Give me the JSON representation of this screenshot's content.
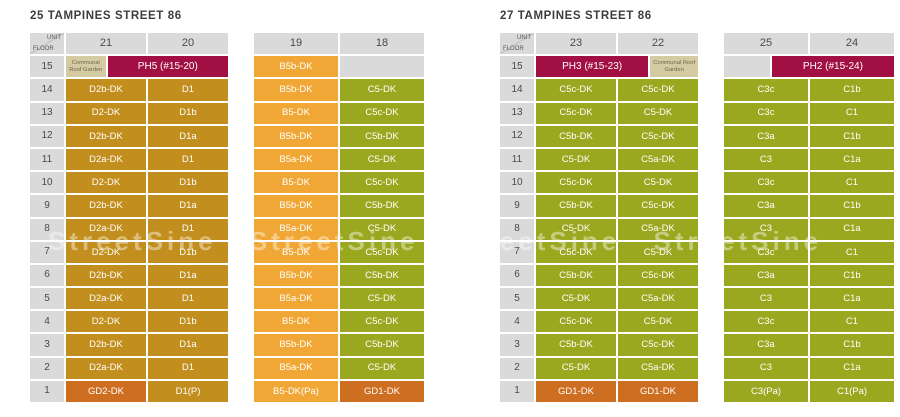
{
  "watermark_text": "StreetSine StreetSine StreetSine StreetSine",
  "palette": {
    "gold": "#C28E1E",
    "orange": "#F0A735",
    "green": "#99A81F",
    "crimson": "#A21043",
    "gd_orange": "#CE6E20",
    "gray": "#DADADA",
    "garden_beige": "#D5CBA2"
  },
  "chart_data": [
    {
      "type": "table",
      "title": "25 TAMPINES STREET 86",
      "corner": {
        "top": "UNIT",
        "bottom": "FLOOR"
      },
      "floors": [
        "15",
        "14",
        "13",
        "12",
        "11",
        "10",
        "9",
        "8",
        "7",
        "6",
        "5",
        "4",
        "3",
        "2",
        "1"
      ],
      "tables": [
        {
          "headers": [
            "21",
            "20"
          ],
          "floor_column": true,
          "floor15": {
            "mode": "garden-left",
            "garden": "Communal Roof Garden",
            "ph": "PH5 (#15-20)",
            "garden_pct": 22
          },
          "rows": [
            [
              [
                "D2b-DK",
                "gold"
              ],
              [
                "D1",
                "gold"
              ]
            ],
            [
              [
                "D2-DK",
                "gold"
              ],
              [
                "D1b",
                "gold"
              ]
            ],
            [
              [
                "D2b-DK",
                "gold"
              ],
              [
                "D1a",
                "gold"
              ]
            ],
            [
              [
                "D2a-DK",
                "gold"
              ],
              [
                "D1",
                "gold"
              ]
            ],
            [
              [
                "D2-DK",
                "gold"
              ],
              [
                "D1b",
                "gold"
              ]
            ],
            [
              [
                "D2b-DK",
                "gold"
              ],
              [
                "D1a",
                "gold"
              ]
            ],
            [
              [
                "D2a-DK",
                "gold"
              ],
              [
                "D1",
                "gold"
              ]
            ],
            [
              [
                "D2-DK",
                "gold"
              ],
              [
                "D1b",
                "gold"
              ]
            ],
            [
              [
                "D2b-DK",
                "gold"
              ],
              [
                "D1a",
                "gold"
              ]
            ],
            [
              [
                "D2a-DK",
                "gold"
              ],
              [
                "D1",
                "gold"
              ]
            ],
            [
              [
                "D2-DK",
                "gold"
              ],
              [
                "D1b",
                "gold"
              ]
            ],
            [
              [
                "D2b-DK",
                "gold"
              ],
              [
                "D1a",
                "gold"
              ]
            ],
            [
              [
                "D2a-DK",
                "gold"
              ],
              [
                "D1",
                "gold"
              ]
            ],
            [
              [
                "GD2-DK",
                "gd_orange"
              ],
              [
                "D1(P)",
                "gold"
              ]
            ]
          ]
        },
        {
          "headers": [
            "19",
            "18"
          ],
          "floor_column": false,
          "floor15": {
            "mode": "cells",
            "cells": [
              [
                "B5b-DK",
                "orange"
              ],
              [
                "",
                "gray"
              ]
            ]
          },
          "rows": [
            [
              [
                "B5b-DK",
                "orange"
              ],
              [
                "C5-DK",
                "green"
              ]
            ],
            [
              [
                "B5-DK",
                "orange"
              ],
              [
                "C5c-DK",
                "green"
              ]
            ],
            [
              [
                "B5b-DK",
                "orange"
              ],
              [
                "C5b-DK",
                "green"
              ]
            ],
            [
              [
                "B5a-DK",
                "orange"
              ],
              [
                "C5-DK",
                "green"
              ]
            ],
            [
              [
                "B5-DK",
                "orange"
              ],
              [
                "C5c-DK",
                "green"
              ]
            ],
            [
              [
                "B5b-DK",
                "orange"
              ],
              [
                "C5b-DK",
                "green"
              ]
            ],
            [
              [
                "B5a-DK",
                "orange"
              ],
              [
                "C5-DK",
                "green"
              ]
            ],
            [
              [
                "B5-DK",
                "orange"
              ],
              [
                "C5c-DK",
                "green"
              ]
            ],
            [
              [
                "B5b-DK",
                "orange"
              ],
              [
                "C5b-DK",
                "green"
              ]
            ],
            [
              [
                "B5a-DK",
                "orange"
              ],
              [
                "C5-DK",
                "green"
              ]
            ],
            [
              [
                "B5-DK",
                "orange"
              ],
              [
                "C5c-DK",
                "green"
              ]
            ],
            [
              [
                "B5b-DK",
                "orange"
              ],
              [
                "C5b-DK",
                "green"
              ]
            ],
            [
              [
                "B5a-DK",
                "orange"
              ],
              [
                "C5-DK",
                "green"
              ]
            ],
            [
              [
                "B5-DK(Pa)",
                "orange"
              ],
              [
                "GD1-DK",
                "gd_orange"
              ]
            ]
          ]
        }
      ]
    },
    {
      "type": "table",
      "title": "27 TAMPINES STREET 86",
      "corner": {
        "top": "UNIT",
        "bottom": "FLOOR"
      },
      "floors": [
        "15",
        "14",
        "13",
        "12",
        "11",
        "10",
        "9",
        "8",
        "7",
        "6",
        "5",
        "4",
        "3",
        "2",
        "1"
      ],
      "tables": [
        {
          "headers": [
            "23",
            "22"
          ],
          "floor_column": true,
          "floor15": {
            "mode": "garden-right",
            "garden": "Communal Roof Garden",
            "ph": "PH3 (#15-23)",
            "garden_pct": 27
          },
          "rows": [
            [
              [
                "C5c-DK",
                "green"
              ],
              [
                "C5c-DK",
                "green"
              ]
            ],
            [
              [
                "C5c-DK",
                "green"
              ],
              [
                "C5-DK",
                "green"
              ]
            ],
            [
              [
                "C5b-DK",
                "green"
              ],
              [
                "C5c-DK",
                "green"
              ]
            ],
            [
              [
                "C5-DK",
                "green"
              ],
              [
                "C5a-DK",
                "green"
              ]
            ],
            [
              [
                "C5c-DK",
                "green"
              ],
              [
                "C5-DK",
                "green"
              ]
            ],
            [
              [
                "C5b-DK",
                "green"
              ],
              [
                "C5c-DK",
                "green"
              ]
            ],
            [
              [
                "C5-DK",
                "green"
              ],
              [
                "C5a-DK",
                "green"
              ]
            ],
            [
              [
                "C5c-DK",
                "green"
              ],
              [
                "C5-DK",
                "green"
              ]
            ],
            [
              [
                "C5b-DK",
                "green"
              ],
              [
                "C5c-DK",
                "green"
              ]
            ],
            [
              [
                "C5-DK",
                "green"
              ],
              [
                "C5a-DK",
                "green"
              ]
            ],
            [
              [
                "C5c-DK",
                "green"
              ],
              [
                "C5-DK",
                "green"
              ]
            ],
            [
              [
                "C5b-DK",
                "green"
              ],
              [
                "C5c-DK",
                "green"
              ]
            ],
            [
              [
                "C5-DK",
                "green"
              ],
              [
                "C5a-DK",
                "green"
              ]
            ],
            [
              [
                "GD1-DK",
                "gd_orange"
              ],
              [
                "GD1-DK",
                "gd_orange"
              ]
            ]
          ]
        },
        {
          "headers": [
            "25",
            "24"
          ],
          "floor_column": false,
          "floor15": {
            "mode": "gray-left-ph",
            "ph": "PH2 (#15-24)",
            "gray_pct": 27
          },
          "rows": [
            [
              [
                "C3c",
                "green"
              ],
              [
                "C1b",
                "green"
              ]
            ],
            [
              [
                "C3c",
                "green"
              ],
              [
                "C1",
                "green"
              ]
            ],
            [
              [
                "C3a",
                "green"
              ],
              [
                "C1b",
                "green"
              ]
            ],
            [
              [
                "C3",
                "green"
              ],
              [
                "C1a",
                "green"
              ]
            ],
            [
              [
                "C3c",
                "green"
              ],
              [
                "C1",
                "green"
              ]
            ],
            [
              [
                "C3a",
                "green"
              ],
              [
                "C1b",
                "green"
              ]
            ],
            [
              [
                "C3",
                "green"
              ],
              [
                "C1a",
                "green"
              ]
            ],
            [
              [
                "C3c",
                "green"
              ],
              [
                "C1",
                "green"
              ]
            ],
            [
              [
                "C3a",
                "green"
              ],
              [
                "C1b",
                "green"
              ]
            ],
            [
              [
                "C3",
                "green"
              ],
              [
                "C1a",
                "green"
              ]
            ],
            [
              [
                "C3c",
                "green"
              ],
              [
                "C1",
                "green"
              ]
            ],
            [
              [
                "C3a",
                "green"
              ],
              [
                "C1b",
                "green"
              ]
            ],
            [
              [
                "C3",
                "green"
              ],
              [
                "C1a",
                "green"
              ]
            ],
            [
              [
                "C3(Pa)",
                "green"
              ],
              [
                "C1(Pa)",
                "green"
              ]
            ]
          ]
        }
      ]
    }
  ]
}
